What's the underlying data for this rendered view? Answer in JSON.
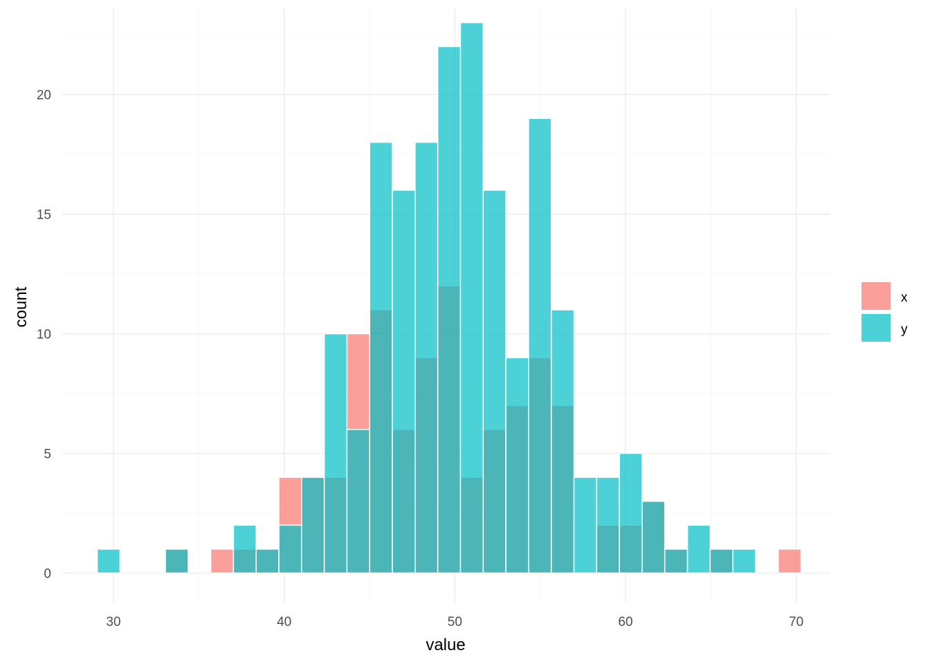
{
  "chart_data": {
    "type": "bar",
    "subtype": "overlapping-histogram",
    "title": "",
    "xlabel": "value",
    "ylabel": "count",
    "xlim": [
      27,
      72
    ],
    "ylim": [
      -1.2,
      23.6
    ],
    "xticks": [
      30,
      40,
      50,
      60,
      70
    ],
    "yticks": [
      0,
      5,
      10,
      15,
      20
    ],
    "grid": true,
    "legend": {
      "position": "right",
      "entries": [
        "x",
        "y"
      ]
    },
    "bin_width": 1.33,
    "bin_starts": [
      29.05,
      30.38,
      31.71,
      33.04,
      34.37,
      35.7,
      37.03,
      38.36,
      39.69,
      41.02,
      42.35,
      43.68,
      45.01,
      46.34,
      47.67,
      49.0,
      50.33,
      51.66,
      52.99,
      54.32,
      55.65,
      56.98,
      58.31,
      59.64,
      60.97,
      62.3,
      63.63,
      64.96,
      66.29,
      67.62,
      68.95
    ],
    "series": [
      {
        "name": "x",
        "color": "#F8766D",
        "opacity": 0.7,
        "values": [
          0,
          0,
          0,
          1,
          0,
          1,
          1,
          1,
          4,
          4,
          4,
          10,
          11,
          6,
          9,
          12,
          4,
          6,
          7,
          9,
          7,
          0,
          2,
          2,
          3,
          1,
          0,
          1,
          0,
          0,
          1
        ]
      },
      {
        "name": "y",
        "color": "#00BFC4",
        "opacity": 0.7,
        "values": [
          1,
          0,
          0,
          1,
          0,
          0,
          2,
          1,
          2,
          4,
          10,
          6,
          18,
          16,
          18,
          22,
          23,
          16,
          9,
          19,
          11,
          4,
          4,
          5,
          3,
          1,
          2,
          1,
          1,
          0,
          0
        ]
      }
    ]
  }
}
